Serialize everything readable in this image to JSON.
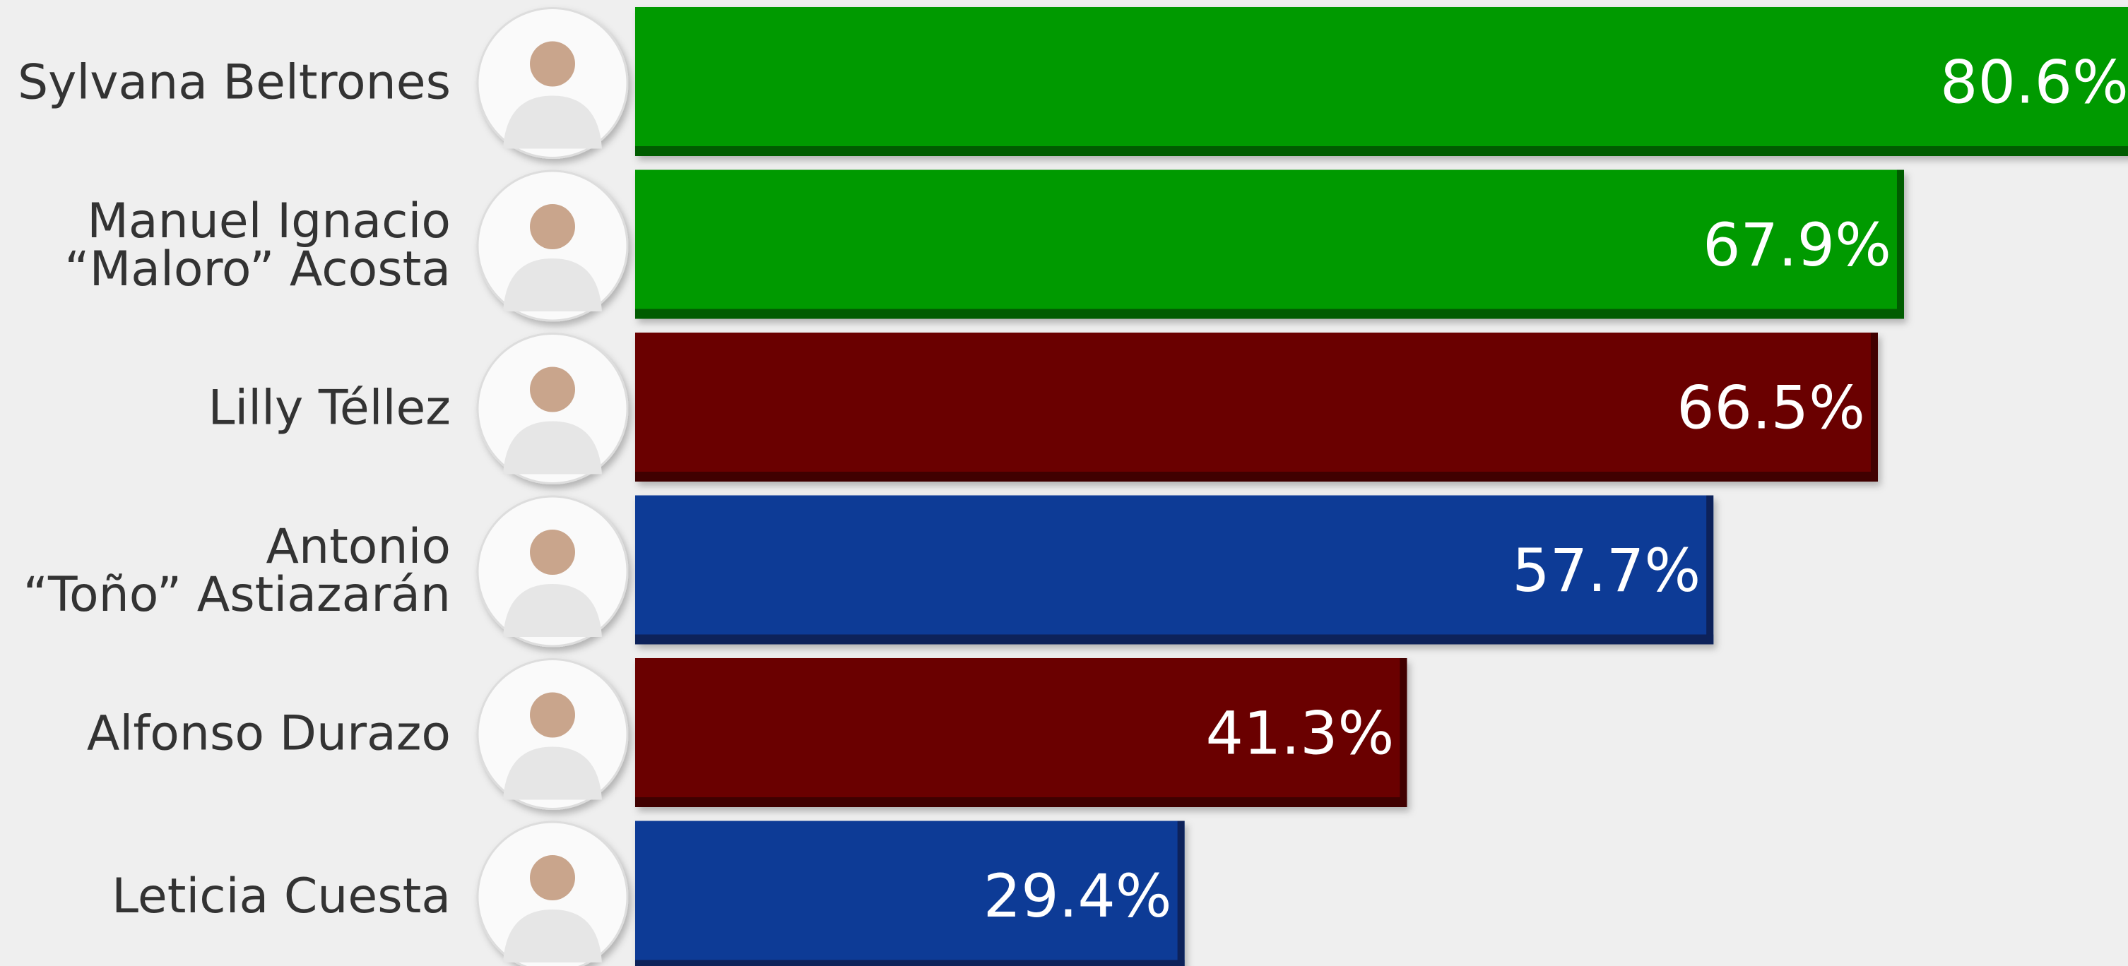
{
  "chart_data": {
    "type": "hbar",
    "categories": [
      "Sylvana Beltrones",
      "Manuel Ignacio\n“Maloro” Acosta",
      "Lilly Téllez",
      "Antonio\n“Toño” Astiazarán",
      "Alfonso Durazo",
      "Leticia Cuesta"
    ],
    "values": [
      80.6,
      67.9,
      66.5,
      57.7,
      41.3,
      29.4
    ],
    "value_labels": [
      "80.6%",
      "67.9%",
      "66.5%",
      "57.7%",
      "41.3%",
      "29.4%"
    ],
    "colors": [
      "#069a06",
      "#069a06",
      "#6b0606",
      "#0d3a96",
      "#6b0606",
      "#0d3a96"
    ]
  }
}
